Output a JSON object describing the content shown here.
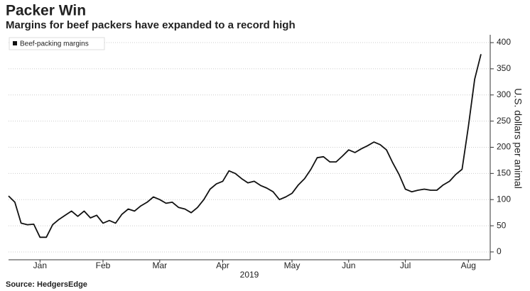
{
  "chart_data": {
    "type": "line",
    "title": "Packer Win",
    "subtitle": "Margins for beef packers have expanded to a record high",
    "y_axis_label": "U.S. dollars per animal",
    "x_axis_year": "2019",
    "source": "Source: HedgersEdge",
    "categories": [
      null,
      null,
      null,
      null,
      null,
      "Jan",
      null,
      null,
      null,
      null,
      null,
      null,
      null,
      null,
      null,
      "Feb",
      null,
      null,
      null,
      null,
      null,
      null,
      null,
      null,
      "Mar",
      null,
      null,
      null,
      null,
      null,
      null,
      null,
      null,
      null,
      "Apr",
      null,
      null,
      null,
      null,
      null,
      null,
      null,
      null,
      null,
      null,
      "May",
      null,
      null,
      null,
      null,
      null,
      null,
      null,
      null,
      "Jun",
      null,
      null,
      null,
      null,
      null,
      null,
      null,
      null,
      "Jul",
      null,
      null,
      null,
      null,
      null,
      null,
      null,
      null,
      null,
      "Aug",
      null,
      null
    ],
    "series": [
      {
        "name": "Beef-packing margins",
        "color": "#111111",
        "values": [
          107,
          95,
          55,
          52,
          53,
          28,
          28,
          52,
          62,
          70,
          78,
          68,
          78,
          65,
          70,
          55,
          60,
          55,
          72,
          82,
          78,
          88,
          95,
          105,
          100,
          93,
          95,
          85,
          82,
          75,
          85,
          100,
          120,
          130,
          135,
          155,
          150,
          140,
          132,
          135,
          127,
          122,
          115,
          100,
          105,
          112,
          128,
          140,
          158,
          180,
          182,
          172,
          172,
          183,
          195,
          190,
          197,
          203,
          210,
          205,
          195,
          170,
          148,
          120,
          115,
          118,
          120,
          118,
          118,
          128,
          135,
          148,
          158,
          240,
          330,
          378
        ]
      }
    ],
    "ylim": [
      -15,
      415
    ],
    "yticks": [
      0,
      50,
      100,
      150,
      200,
      250,
      300,
      350,
      400
    ],
    "grid": true,
    "legend": "top-left"
  }
}
